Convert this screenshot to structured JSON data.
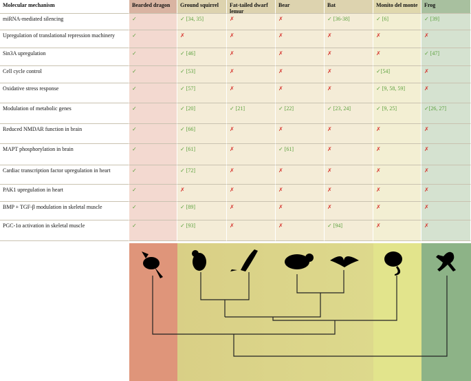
{
  "table": {
    "header": [
      "Molecular mechanism",
      "Bearded dragon",
      "Ground squirrel",
      "Fat-tailed dwarf lemur",
      "Bear",
      "Bat",
      "Monito del monte",
      "Frog"
    ],
    "rows": [
      [
        "miRNA-mediated silencing",
        "✓",
        "✓ [34, 35]",
        "✗",
        "✗",
        "✓ [36-38]",
        "✓ [6]",
        "✓ [39]"
      ],
      [
        "Upregulation of translational repression machinery",
        "✓",
        "✗",
        "✗",
        "✗",
        "✗",
        "✗",
        "✗"
      ],
      [
        "Sin3A upregulation",
        "✓",
        "✓ [46]",
        "✗",
        "✗",
        "✗",
        "✗",
        "✓ [47]"
      ],
      [
        "Cell cycle control",
        "✓",
        "✓ [53]",
        "✗",
        "✗",
        "✗",
        "✓[54]",
        "✗"
      ],
      [
        "Oxidative stress response",
        "✓",
        "✓ [57]",
        "✗",
        "✗",
        "✗",
        "✓ [9, 58, 59]",
        "✗"
      ],
      [
        "Modulation of metabolic genes",
        "✓",
        "✓ [20]",
        "✓ [21]",
        "✓ [22]",
        "✓ [23, 24]",
        "✓ [9, 25]",
        "✓[26, 27]"
      ],
      [
        "Reduced NMDAR function in brain",
        "✓",
        "✓ [66]",
        "✗",
        "✗",
        "✗",
        "✗",
        "✗"
      ],
      [
        "MAPT phosphorylation in brain",
        "✓",
        "✓ [61]",
        "✗",
        "✓ [61]",
        "✗",
        "✗",
        "✗"
      ],
      [
        "Cardiac transcription factor upregulation in heart",
        "✓",
        "✓ [72]",
        "✗",
        "✗",
        "✗",
        "✗",
        "✗"
      ],
      [
        "PAK1 upregulation in heart",
        "✓",
        "✗",
        "✗",
        "✗",
        "✗",
        "✗",
        "✗"
      ],
      [
        "BMP + TGF-β modulation in skeletal muscle",
        "✓",
        "✓ [89]",
        "✗",
        "✗",
        "✗",
        "✗",
        "✗"
      ],
      [
        "PGC-1α activation in skeletal muscle",
        "✓",
        "✓ [93]",
        "✗",
        "✗",
        "✓ [94]",
        "✗",
        "✗"
      ]
    ]
  }
}
